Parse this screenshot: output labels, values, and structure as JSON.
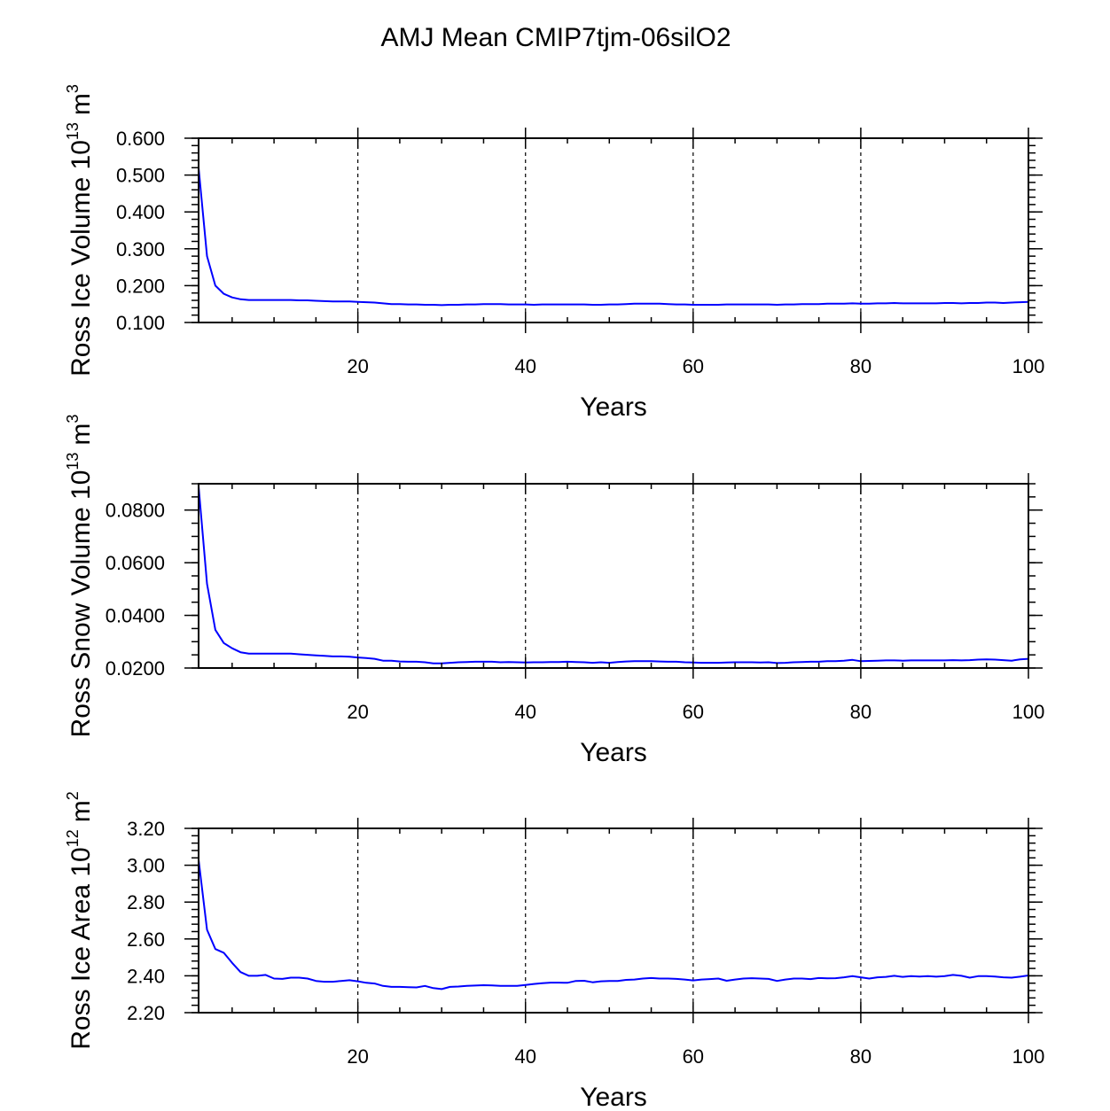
{
  "title": "AMJ Mean CMIP7tjm-06silO2",
  "colors": {
    "series": "#0000ff",
    "axes": "#000000",
    "grid": "#000000"
  },
  "chart_data": [
    {
      "type": "line",
      "ylabel": "Ross Ice Volume 10",
      "ylabel_exp": "13",
      "ylabel_unit": "m",
      "ylabel_unit_exp": "3",
      "xlabel": "Years",
      "xlim": [
        1,
        100
      ],
      "ylim": [
        0.1,
        0.6
      ],
      "xticks": [
        20,
        40,
        60,
        80,
        100
      ],
      "xtick_labels": [
        "20",
        "40",
        "60",
        "80",
        "100"
      ],
      "yticks": [
        0.1,
        0.2,
        0.3,
        0.4,
        0.5,
        0.6
      ],
      "ytick_labels": [
        "0.100",
        "0.200",
        "0.300",
        "0.400",
        "0.500",
        "0.600"
      ],
      "y_minor_step": 0.02,
      "grid": "vertical dashed at major x ticks",
      "series": [
        {
          "color": "#0000ff",
          "x": [
            1,
            2,
            3,
            4,
            5,
            6,
            7,
            8,
            9,
            10,
            11,
            12,
            13,
            14,
            15,
            16,
            17,
            18,
            19,
            20,
            21,
            22,
            23,
            24,
            25,
            26,
            27,
            28,
            29,
            30,
            31,
            32,
            33,
            34,
            35,
            36,
            37,
            38,
            39,
            40,
            41,
            42,
            43,
            44,
            45,
            46,
            47,
            48,
            49,
            50,
            51,
            52,
            53,
            54,
            55,
            56,
            57,
            58,
            59,
            60,
            61,
            62,
            63,
            64,
            65,
            66,
            67,
            68,
            69,
            70,
            71,
            72,
            73,
            74,
            75,
            76,
            77,
            78,
            79,
            80,
            81,
            82,
            83,
            84,
            85,
            86,
            87,
            88,
            89,
            90,
            91,
            92,
            93,
            94,
            95,
            96,
            97,
            98,
            99,
            100
          ],
          "values": [
            0.52,
            0.28,
            0.2,
            0.178,
            0.168,
            0.163,
            0.161,
            0.161,
            0.161,
            0.161,
            0.161,
            0.161,
            0.16,
            0.16,
            0.159,
            0.158,
            0.157,
            0.157,
            0.157,
            0.156,
            0.155,
            0.154,
            0.152,
            0.15,
            0.15,
            0.149,
            0.149,
            0.148,
            0.148,
            0.147,
            0.148,
            0.148,
            0.149,
            0.149,
            0.15,
            0.15,
            0.15,
            0.149,
            0.149,
            0.149,
            0.148,
            0.149,
            0.149,
            0.149,
            0.149,
            0.149,
            0.149,
            0.148,
            0.148,
            0.149,
            0.149,
            0.15,
            0.151,
            0.151,
            0.151,
            0.151,
            0.15,
            0.149,
            0.149,
            0.148,
            0.148,
            0.148,
            0.148,
            0.149,
            0.149,
            0.149,
            0.149,
            0.149,
            0.149,
            0.148,
            0.149,
            0.149,
            0.15,
            0.15,
            0.15,
            0.151,
            0.151,
            0.151,
            0.152,
            0.151,
            0.151,
            0.152,
            0.152,
            0.153,
            0.152,
            0.152,
            0.152,
            0.152,
            0.152,
            0.153,
            0.153,
            0.152,
            0.153,
            0.153,
            0.154,
            0.154,
            0.153,
            0.154,
            0.155,
            0.156
          ]
        }
      ]
    },
    {
      "type": "line",
      "ylabel": "Ross Snow Volume 10",
      "ylabel_exp": "13",
      "ylabel_unit": "m",
      "ylabel_unit_exp": "3",
      "xlabel": "Years",
      "xlim": [
        1,
        100
      ],
      "ylim": [
        0.02,
        0.09
      ],
      "xticks": [
        20,
        40,
        60,
        80,
        100
      ],
      "xtick_labels": [
        "20",
        "40",
        "60",
        "80",
        "100"
      ],
      "yticks": [
        0.02,
        0.04,
        0.06,
        0.08
      ],
      "ytick_labels": [
        "0.0200",
        "0.0400",
        "0.0600",
        "0.0800"
      ],
      "y_minor_step": 0.005,
      "grid": "vertical dashed at major x ticks",
      "series": [
        {
          "color": "#0000ff",
          "x": [
            1,
            2,
            3,
            4,
            5,
            6,
            7,
            8,
            9,
            10,
            11,
            12,
            13,
            14,
            15,
            16,
            17,
            18,
            19,
            20,
            21,
            22,
            23,
            24,
            25,
            26,
            27,
            28,
            29,
            30,
            31,
            32,
            33,
            34,
            35,
            36,
            37,
            38,
            39,
            40,
            41,
            42,
            43,
            44,
            45,
            46,
            47,
            48,
            49,
            50,
            51,
            52,
            53,
            54,
            55,
            56,
            57,
            58,
            59,
            60,
            61,
            62,
            63,
            64,
            65,
            66,
            67,
            68,
            69,
            70,
            71,
            72,
            73,
            74,
            75,
            76,
            77,
            78,
            79,
            80,
            81,
            82,
            83,
            84,
            85,
            86,
            87,
            88,
            89,
            90,
            91,
            92,
            93,
            94,
            95,
            96,
            97,
            98,
            99,
            100
          ],
          "values": [
            0.089,
            0.052,
            0.0345,
            0.0295,
            0.0275,
            0.026,
            0.0255,
            0.0255,
            0.0255,
            0.0255,
            0.0255,
            0.0255,
            0.0252,
            0.025,
            0.0248,
            0.0246,
            0.0244,
            0.0244,
            0.0243,
            0.024,
            0.0238,
            0.0235,
            0.0228,
            0.0228,
            0.0225,
            0.0224,
            0.0224,
            0.0222,
            0.0218,
            0.0218,
            0.022,
            0.0222,
            0.0223,
            0.0224,
            0.0224,
            0.0224,
            0.0222,
            0.0223,
            0.0222,
            0.0221,
            0.0222,
            0.0222,
            0.0223,
            0.0223,
            0.0224,
            0.0223,
            0.0222,
            0.022,
            0.0222,
            0.022,
            0.0223,
            0.0225,
            0.0226,
            0.0226,
            0.0226,
            0.0225,
            0.0224,
            0.0224,
            0.0222,
            0.0221,
            0.022,
            0.022,
            0.022,
            0.0221,
            0.0222,
            0.0222,
            0.0222,
            0.0221,
            0.0222,
            0.0219,
            0.022,
            0.0222,
            0.0223,
            0.0224,
            0.0224,
            0.0226,
            0.0226,
            0.0228,
            0.0231,
            0.0226,
            0.0227,
            0.0228,
            0.0229,
            0.0229,
            0.0228,
            0.0229,
            0.0229,
            0.0229,
            0.0229,
            0.0229,
            0.023,
            0.0229,
            0.023,
            0.0232,
            0.0233,
            0.0232,
            0.023,
            0.0228,
            0.0233,
            0.0235
          ]
        }
      ]
    },
    {
      "type": "line",
      "ylabel": "Ross Ice Area 10",
      "ylabel_exp": "12",
      "ylabel_unit": "m",
      "ylabel_unit_exp": "2",
      "xlabel": "Years",
      "xlim": [
        1,
        100
      ],
      "ylim": [
        2.2,
        3.2
      ],
      "xticks": [
        20,
        40,
        60,
        80,
        100
      ],
      "xtick_labels": [
        "20",
        "40",
        "60",
        "80",
        "100"
      ],
      "yticks": [
        2.2,
        2.4,
        2.6,
        2.8,
        3.0,
        3.2
      ],
      "ytick_labels": [
        "2.20",
        "2.40",
        "2.60",
        "2.80",
        "3.00",
        "3.20"
      ],
      "y_minor_step": 0.04,
      "grid": "vertical dashed at major x ticks",
      "series": [
        {
          "color": "#0000ff",
          "x": [
            1,
            2,
            3,
            4,
            5,
            6,
            7,
            8,
            9,
            10,
            11,
            12,
            13,
            14,
            15,
            16,
            17,
            18,
            19,
            20,
            21,
            22,
            23,
            24,
            25,
            26,
            27,
            28,
            29,
            30,
            31,
            32,
            33,
            34,
            35,
            36,
            37,
            38,
            39,
            40,
            41,
            42,
            43,
            44,
            45,
            46,
            47,
            48,
            49,
            50,
            51,
            52,
            53,
            54,
            55,
            56,
            57,
            58,
            59,
            60,
            61,
            62,
            63,
            64,
            65,
            66,
            67,
            68,
            69,
            70,
            71,
            72,
            73,
            74,
            75,
            76,
            77,
            78,
            79,
            80,
            81,
            82,
            83,
            84,
            85,
            86,
            87,
            88,
            89,
            90,
            91,
            92,
            93,
            94,
            95,
            96,
            97,
            98,
            99,
            100
          ],
          "values": [
            3.03,
            2.65,
            2.545,
            2.525,
            2.47,
            2.42,
            2.4,
            2.4,
            2.405,
            2.385,
            2.383,
            2.39,
            2.39,
            2.385,
            2.372,
            2.368,
            2.368,
            2.372,
            2.376,
            2.37,
            2.362,
            2.358,
            2.345,
            2.34,
            2.34,
            2.338,
            2.337,
            2.345,
            2.333,
            2.328,
            2.34,
            2.342,
            2.345,
            2.347,
            2.349,
            2.348,
            2.345,
            2.345,
            2.345,
            2.35,
            2.356,
            2.36,
            2.363,
            2.363,
            2.362,
            2.372,
            2.373,
            2.365,
            2.37,
            2.372,
            2.372,
            2.378,
            2.38,
            2.385,
            2.388,
            2.385,
            2.385,
            2.383,
            2.38,
            2.375,
            2.38,
            2.382,
            2.385,
            2.373,
            2.38,
            2.385,
            2.387,
            2.385,
            2.383,
            2.372,
            2.38,
            2.385,
            2.385,
            2.382,
            2.388,
            2.386,
            2.387,
            2.392,
            2.398,
            2.392,
            2.385,
            2.392,
            2.394,
            2.4,
            2.394,
            2.398,
            2.396,
            2.398,
            2.395,
            2.398,
            2.405,
            2.4,
            2.39,
            2.398,
            2.398,
            2.396,
            2.392,
            2.39,
            2.395,
            2.402
          ]
        }
      ]
    }
  ]
}
